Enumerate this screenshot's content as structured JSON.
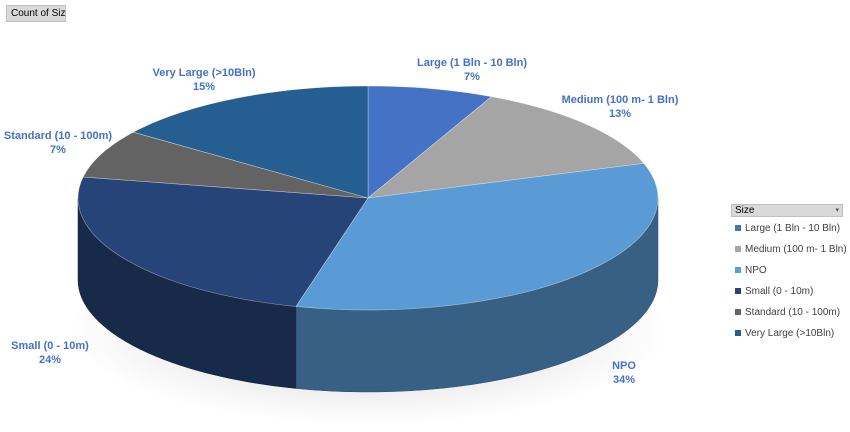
{
  "field_button": {
    "label": "Count of Size"
  },
  "legend": {
    "title": "Size",
    "dropdown_icon": "dropdown-arrow-icon"
  },
  "chart_data": {
    "type": "pie",
    "title": "",
    "style": "3d",
    "slices": [
      {
        "name": "Large (1 Bln - 10 Bln)",
        "percent": "7%",
        "value": 7,
        "color": "#4472c4"
      },
      {
        "name": "Medium (100 m- 1 Bln)",
        "percent": "13%",
        "value": 13,
        "color": "#a5a5a5"
      },
      {
        "name": "NPO",
        "percent": "34%",
        "value": 34,
        "color": "#5b9bd5"
      },
      {
        "name": "Small (0 - 10m)",
        "percent": "24%",
        "value": 24,
        "color": "#264478"
      },
      {
        "name": "Standard (10 - 100m)",
        "percent": "7%",
        "value": 7,
        "color": "#636363"
      },
      {
        "name": "Very Large (>10Bln)",
        "percent": "15%",
        "value": 15,
        "color": "#255e91"
      }
    ],
    "legend_position": "right"
  }
}
